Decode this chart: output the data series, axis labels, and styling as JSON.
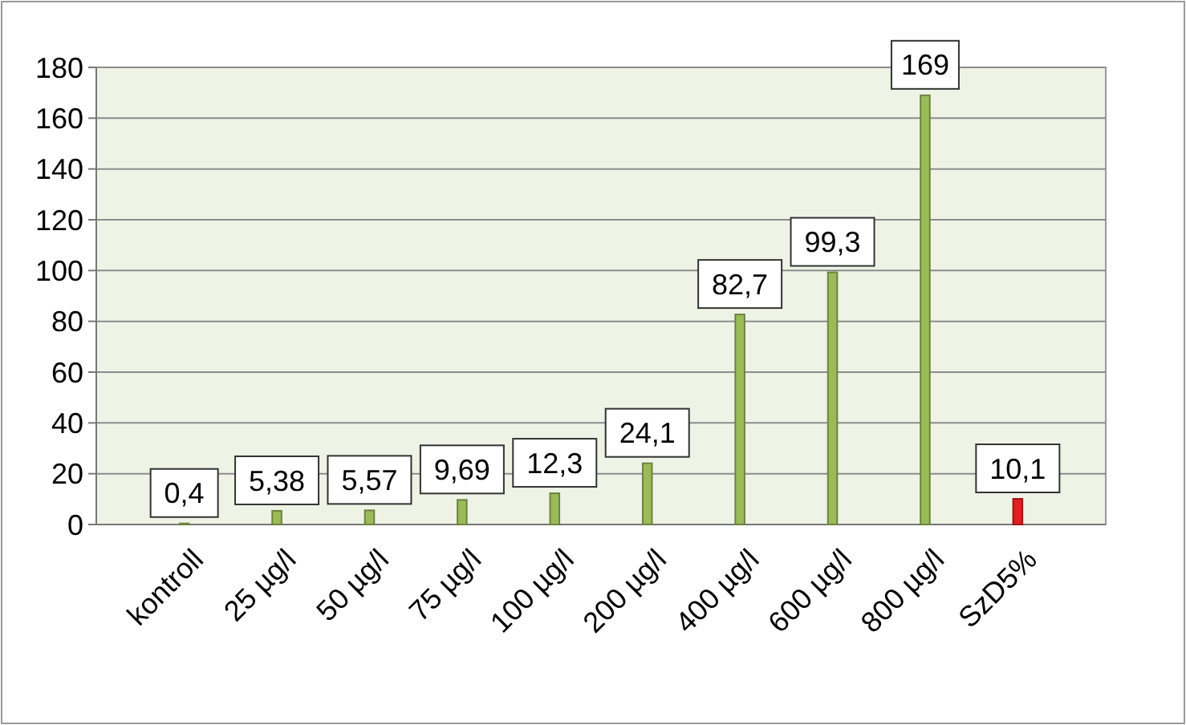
{
  "chart_data": {
    "type": "bar",
    "categories": [
      "kontroll",
      "25 µg/l",
      "50 µg/l",
      "75 µg/l",
      "100 µg/l",
      "200 µg/l",
      "400 µg/l",
      "600 µg/l",
      "800 µg/l",
      "SzD5%"
    ],
    "values": [
      0.4,
      5.38,
      5.57,
      9.69,
      12.3,
      24.1,
      82.7,
      99.3,
      169,
      10.1
    ],
    "value_labels": [
      "0,4",
      "5,38",
      "5,57",
      "9,69",
      "12,3",
      "24,1",
      "82,7",
      "99,3",
      "169",
      "10,1"
    ],
    "colors": [
      "#9bbb59",
      "#9bbb59",
      "#9bbb59",
      "#9bbb59",
      "#9bbb59",
      "#9bbb59",
      "#9bbb59",
      "#9bbb59",
      "#9bbb59",
      "#e02020"
    ],
    "ylim": [
      0,
      180
    ],
    "yticks": [
      0,
      20,
      40,
      60,
      80,
      100,
      120,
      140,
      160,
      180
    ],
    "grid": "y"
  }
}
